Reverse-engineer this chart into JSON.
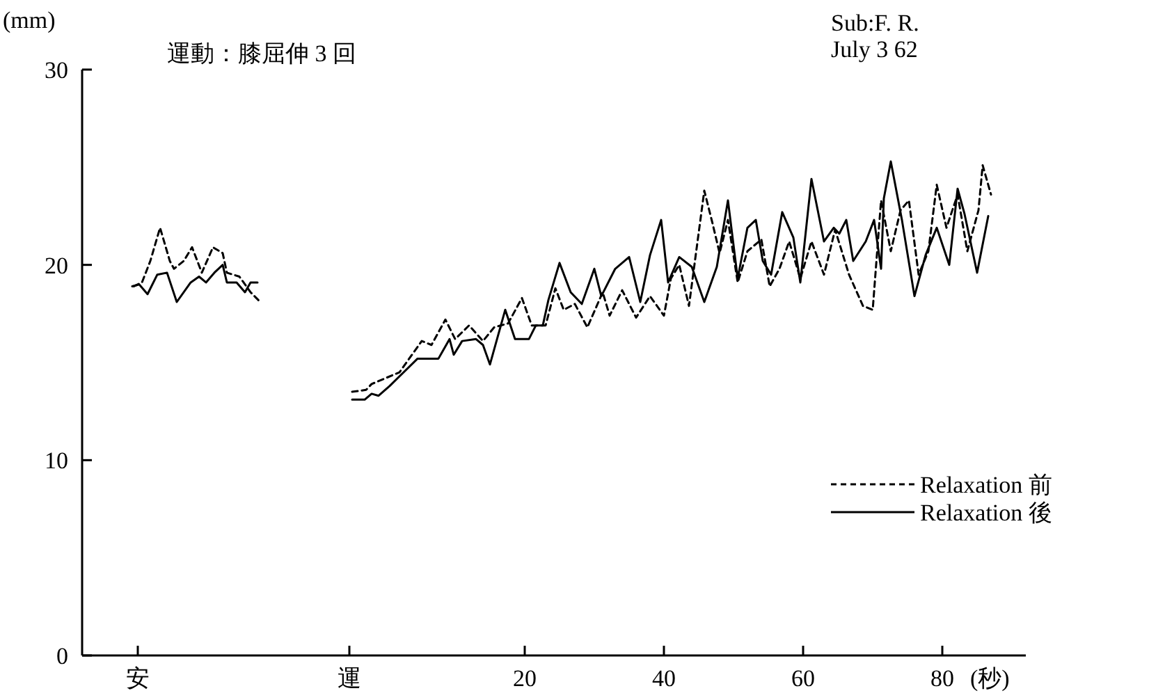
{
  "chart_data": {
    "type": "line",
    "title": "運動：膝屈伸 3 回",
    "xlabel": "(秒)",
    "ylabel": "(mm)",
    "annotations": [
      "Sub:F. R.",
      "July 3  62"
    ],
    "xlim": [
      -43.6,
      92
    ],
    "ylim": [
      0,
      30
    ],
    "xticks": [
      {
        "value": -35.6,
        "label": "安"
      },
      {
        "value": -5.2,
        "label": "運"
      },
      20,
      40,
      60,
      80
    ],
    "yticks": [
      0,
      10,
      20,
      30
    ],
    "legend": "right",
    "series": [
      {
        "name": "Relaxation 前",
        "color": "#000000",
        "line_style": "dashed",
        "x": [
          -36.2,
          -35,
          -33.8,
          -32.4,
          -31,
          -30.4,
          -29,
          -27.8,
          -26.4,
          -24.8,
          -23.4,
          -22.8,
          -21,
          -19.4,
          -18,
          null,
          -4.8,
          -2.8,
          -2,
          0,
          2,
          5.2,
          6.6,
          8.6,
          10,
          12,
          14,
          15.6,
          17.6,
          19.6,
          21,
          23,
          24.4,
          25.6,
          27.2,
          29,
          31.2,
          32.2,
          34,
          36,
          38,
          40,
          41,
          42.2,
          43.6,
          45.8,
          47,
          48,
          49.2,
          50.6,
          52,
          54,
          55.2,
          56.6,
          58,
          59.6,
          61.2,
          63,
          64.6,
          66.6,
          68.6,
          70,
          71.2,
          72.6,
          74,
          75.2,
          76.6,
          78,
          79.2,
          80.6,
          82.2,
          83.6,
          85.2,
          85.8,
          87
        ],
        "values": [
          18.9,
          19.1,
          20.2,
          21.9,
          20.2,
          19.8,
          20.2,
          20.9,
          19.6,
          20.9,
          20.6,
          19.6,
          19.4,
          18.6,
          18.1,
          null,
          13.5,
          13.6,
          13.9,
          14.2,
          14.5,
          16.1,
          15.9,
          17.2,
          16.2,
          16.9,
          16.1,
          16.8,
          17.0,
          18.3,
          16.9,
          16.9,
          18.8,
          17.7,
          18.0,
          16.8,
          18.6,
          17.4,
          18.7,
          17.3,
          18.4,
          17.4,
          19.3,
          20.0,
          17.9,
          23.8,
          22.1,
          20.6,
          22.3,
          19.1,
          20.7,
          21.3,
          18.9,
          19.8,
          21.2,
          19.3,
          21.2,
          19.5,
          21.8,
          19.5,
          17.9,
          17.7,
          23.3,
          20.7,
          22.8,
          23.3,
          19.5,
          20.7,
          24.1,
          21.9,
          23.6,
          20.7,
          22.8,
          25.1,
          23.6
        ]
      },
      {
        "name": "Relaxation 後",
        "color": "#000000",
        "line_style": "solid",
        "x": [
          -36.4,
          -35.4,
          -34.2,
          -32.8,
          -31.4,
          -30,
          -28,
          -26.8,
          -25.8,
          -24.6,
          -23.4,
          -22.8,
          -21.4,
          -20.2,
          -19.4,
          -18.4,
          null,
          -4.8,
          -3,
          -2,
          -1,
          0.6,
          2.6,
          4.6,
          7.6,
          9.2,
          9.8,
          11,
          13,
          14,
          15,
          17.2,
          18.6,
          20.6,
          21.6,
          22.6,
          23.4,
          25,
          26.6,
          28.2,
          30,
          31,
          33,
          35,
          36.6,
          38,
          39.6,
          40.6,
          42.2,
          44,
          45.8,
          47.6,
          49.2,
          50.6,
          52,
          53.2,
          54.2,
          55.4,
          57,
          58.6,
          59.6,
          61.2,
          63,
          64.4,
          65.2,
          66.2,
          67.2,
          69,
          70.2,
          71.2,
          71.6,
          72.6,
          74.2,
          76,
          77.6,
          79.2,
          81,
          82.2,
          83.2,
          85,
          86.6
        ],
        "values": [
          18.9,
          19.0,
          18.5,
          19.5,
          19.6,
          18.1,
          19.1,
          19.4,
          19.1,
          19.6,
          20.0,
          19.1,
          19.1,
          18.6,
          19.1,
          19.1,
          null,
          13.1,
          13.1,
          13.4,
          13.3,
          13.8,
          14.5,
          15.2,
          15.2,
          16.2,
          15.4,
          16.1,
          16.2,
          15.9,
          14.9,
          17.7,
          16.2,
          16.2,
          16.9,
          16.9,
          18.2,
          20.1,
          18.6,
          18.0,
          19.8,
          18.4,
          19.8,
          20.4,
          18.1,
          20.5,
          22.3,
          19.1,
          20.4,
          19.9,
          18.1,
          19.9,
          23.3,
          19.3,
          21.9,
          22.3,
          20.2,
          19.5,
          22.7,
          21.4,
          19.1,
          24.4,
          21.2,
          21.9,
          21.6,
          22.3,
          20.2,
          21.2,
          22.3,
          19.8,
          23.4,
          25.3,
          22.3,
          18.4,
          20.5,
          21.9,
          20.0,
          23.9,
          22.6,
          19.6,
          22.5
        ]
      }
    ]
  }
}
